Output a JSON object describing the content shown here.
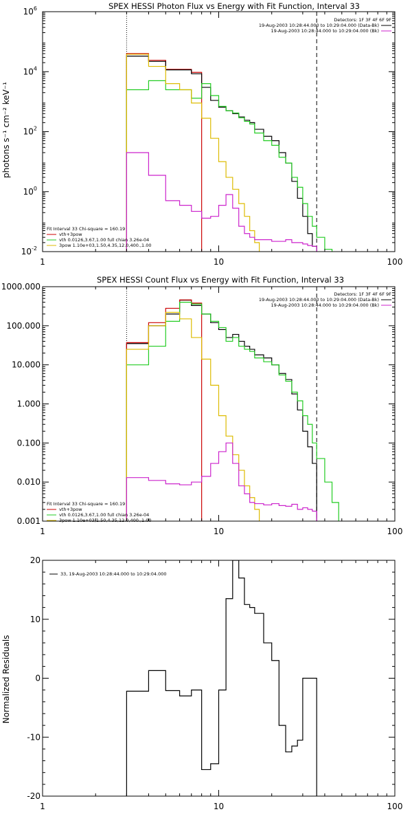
{
  "colors": {
    "total": "#000000",
    "red": "#cc0000",
    "green": "#22cc22",
    "yellow": "#ddbb00",
    "magenta": "#cc22cc",
    "blue": "#2222ee"
  },
  "chart_data": [
    {
      "type": "line",
      "title": "SPEX HESSI Photon Flux vs Energy with Fit Function, Interval 33",
      "ylabel": "photons s⁻¹ cm⁻² keV⁻¹",
      "xscale": "log",
      "yscale": "log",
      "xlim": [
        1,
        100
      ],
      "ylim": [
        0.01,
        1000000
      ],
      "xticks": [
        {
          "v": 1,
          "label": "1"
        },
        {
          "v": 10,
          "label": "10"
        },
        {
          "v": 100,
          "label": "100"
        }
      ],
      "yticks": [
        {
          "v": 0.01,
          "base": "10",
          "exp": "-2"
        },
        {
          "v": 1,
          "base": "10",
          "exp": "0"
        },
        {
          "v": 100,
          "base": "10",
          "exp": "2"
        },
        {
          "v": 10000,
          "base": "10",
          "exp": "4"
        },
        {
          "v": 1000000,
          "base": "10",
          "exp": "6"
        }
      ],
      "legend_top": [
        {
          "text": "Detectors: 1F 3F 4F 6F 9F",
          "color": ""
        },
        {
          "text": "19-Aug-2003 10:28:44.000 to 10:29:04.000 (Data-Bk)",
          "color": "#000000"
        },
        {
          "text": "19-Aug-2003 10:28:44.000 to 10:29:04.000 (Bk)",
          "color": "#cc22cc"
        }
      ],
      "legend_bottom": [
        {
          "text": "Fit Interval 33   Chi-square = 160.19",
          "color": ""
        },
        {
          "text": "vth+3pow",
          "color": "#cc0000"
        },
        {
          "text": "vth 0.0126,3.67,1.00  full chian 3.26e-04",
          "color": "#22cc22"
        },
        {
          "text": "3pow 1.10e+03,1.50,4.35,12.0,400.,1.00",
          "color": "#ddbb00"
        }
      ],
      "vlines": [
        {
          "x": 3.0,
          "style": "dotted"
        },
        {
          "x": 36.0,
          "style": "dashed"
        }
      ],
      "series": [
        {
          "color": "#cc0000",
          "edges": [
            3.0,
            4.0,
            5.0,
            6.0,
            7.0,
            8.0
          ],
          "values": [
            40000,
            24000,
            12000,
            12000,
            9500
          ]
        },
        {
          "color": "#000000",
          "edges": [
            3.0,
            4.0,
            5.0,
            6.0,
            7.0,
            8.0,
            9.0,
            10.0,
            11.0,
            12.0,
            13.0,
            14.0,
            15.0,
            16.0,
            18.0,
            20.0,
            22.0,
            24.0,
            26.0,
            28.0,
            30.0,
            32.0,
            34.0,
            36.0
          ],
          "values": [
            33000,
            22000,
            11500,
            11500,
            8500,
            3000,
            1100,
            650,
            500,
            400,
            310,
            240,
            200,
            120,
            70,
            50,
            20,
            9,
            2.2,
            0.6,
            0.15,
            0.04,
            0.015
          ]
        },
        {
          "color": "#22cc22",
          "edges": [
            3.0,
            4.0,
            5.0,
            6.0,
            7.0,
            8.0,
            9.0,
            10.0,
            11.0,
            12.0,
            13.0,
            14.0,
            15.0,
            16.0,
            18.0,
            20.0,
            22.0,
            24.0,
            26.0,
            28.0,
            30.0,
            32.0,
            34.0,
            36.0,
            40.0,
            44.0
          ],
          "values": [
            2500,
            5000,
            2500,
            2500,
            1300,
            4000,
            1600,
            700,
            500,
            420,
            290,
            220,
            180,
            90,
            50,
            35,
            14,
            9,
            3,
            1.4,
            0.4,
            0.15,
            0.07,
            0.03,
            0.012
          ]
        },
        {
          "color": "#ddbb00",
          "edges": [
            3.0,
            4.0,
            5.0,
            6.0,
            7.0,
            8.0,
            9.0,
            10.0,
            11.0,
            12.0,
            13.0,
            14.0,
            15.0,
            16.0,
            17.0
          ],
          "values": [
            38000,
            15000,
            4000,
            2500,
            900,
            280,
            60,
            10,
            3,
            1.2,
            0.4,
            0.15,
            0.05,
            0.02
          ]
        },
        {
          "color": "#cc22cc",
          "edges": [
            3.0,
            4.0,
            5.0,
            6.0,
            7.0,
            8.0,
            9.0,
            10.0,
            11.0,
            12.0,
            13.0,
            14.0,
            15.0,
            16.0,
            18.0,
            20.0,
            22.0,
            24.0,
            26.0,
            28.0,
            30.0,
            32.0,
            34.0,
            36.0
          ],
          "values": [
            20,
            3.5,
            0.5,
            0.35,
            0.22,
            0.13,
            0.15,
            0.35,
            0.8,
            0.28,
            0.07,
            0.04,
            0.03,
            0.025,
            0.025,
            0.022,
            0.022,
            0.025,
            0.02,
            0.02,
            0.018,
            0.016,
            0.015
          ]
        }
      ]
    },
    {
      "type": "line",
      "title": "SPEX HESSI Count Flux vs Energy with Fit Function, Interval 33",
      "ylabel": "",
      "xscale": "log",
      "yscale": "log",
      "xlim": [
        1,
        100
      ],
      "ylim": [
        0.001,
        1000
      ],
      "xticks": [
        {
          "v": 1,
          "label": "1"
        },
        {
          "v": 10,
          "label": "10"
        },
        {
          "v": 100,
          "label": "100"
        }
      ],
      "yticks": [
        {
          "v": 0.001,
          "label": "0.001"
        },
        {
          "v": 0.01,
          "label": "0.010"
        },
        {
          "v": 0.1,
          "label": "0.100"
        },
        {
          "v": 1,
          "label": "1.000"
        },
        {
          "v": 10,
          "label": "10.000"
        },
        {
          "v": 100,
          "label": "100.000"
        },
        {
          "v": 1000,
          "label": "1000.000"
        }
      ],
      "legend_top": [
        {
          "text": "Detectors: 1F 3F 4F 6F 9F",
          "color": ""
        },
        {
          "text": "19-Aug-2003 10:28:44.000 to 10:29:04.000 (Data-Bk)",
          "color": "#000000"
        },
        {
          "text": "19-Aug-2003 10:28:44.000 to 10:29:04.000 (Bk)",
          "color": "#cc22cc"
        }
      ],
      "legend_bottom": [
        {
          "text": "Fit Interval 33   Chi-square = 160.19",
          "color": ""
        },
        {
          "text": "vth+3pow",
          "color": "#cc0000"
        },
        {
          "text": "vth 0.0126,3.67,1.00  full chian 3.26e-04",
          "color": "#22cc22"
        },
        {
          "text": "3pow 1.10e+03,1.50,4.35,12.0,400.,1.00",
          "color": "#ddbb00"
        }
      ],
      "vlines": [
        {
          "x": 3.0,
          "style": "dotted"
        },
        {
          "x": 36.0,
          "style": "dashed"
        }
      ],
      "series": [
        {
          "color": "#000000",
          "edges": [
            3.0,
            4.0,
            5.0,
            6.0,
            7.0,
            8.0,
            9.0,
            10.0,
            11.0,
            12.0,
            13.0,
            14.0,
            15.0,
            16.0,
            18.0,
            20.0,
            22.0,
            24.0,
            26.0,
            28.0,
            30.0,
            32.0,
            34.0,
            36.0
          ],
          "values": [
            35,
            100,
            200,
            450,
            330,
            200,
            120,
            80,
            50,
            60,
            40,
            30,
            25,
            18,
            15,
            10,
            6,
            4.2,
            1.8,
            0.7,
            0.2,
            0.08,
            0.03
          ]
        },
        {
          "color": "#cc0000",
          "edges": [
            3.0,
            4.0,
            5.0,
            6.0,
            7.0,
            8.0
          ],
          "values": [
            37,
            120,
            280,
            460,
            380
          ]
        },
        {
          "color": "#22cc22",
          "edges": [
            3.0,
            4.0,
            5.0,
            6.0,
            7.0,
            8.0,
            9.0,
            10.0,
            11.0,
            12.0,
            13.0,
            14.0,
            15.0,
            16.0,
            18.0,
            20.0,
            22.0,
            24.0,
            26.0,
            28.0,
            30.0,
            32.0,
            34.0,
            36.0,
            40.0,
            44.0,
            48.0
          ],
          "values": [
            10,
            30,
            130,
            400,
            360,
            200,
            130,
            90,
            40,
            50,
            30,
            25,
            22,
            15,
            12,
            10,
            5.5,
            3.8,
            2,
            1.2,
            0.5,
            0.3,
            0.1,
            0.04,
            0.01,
            0.003
          ]
        },
        {
          "color": "#ddbb00",
          "edges": [
            3.0,
            4.0,
            5.0,
            6.0,
            7.0,
            8.0,
            9.0,
            10.0,
            11.0,
            12.0,
            13.0,
            14.0,
            15.0,
            16.0,
            17.0
          ],
          "values": [
            25,
            100,
            220,
            150,
            50,
            14,
            3,
            0.5,
            0.15,
            0.05,
            0.02,
            0.008,
            0.004,
            0.002
          ]
        },
        {
          "color": "#cc22cc",
          "edges": [
            3.0,
            4.0,
            5.0,
            6.0,
            7.0,
            8.0,
            9.0,
            10.0,
            11.0,
            12.0,
            13.0,
            14.0,
            15.0,
            16.0,
            18.0,
            20.0,
            22.0,
            24.0,
            26.0,
            28.0,
            30.0,
            32.0,
            34.0,
            36.0
          ],
          "values": [
            0.013,
            0.011,
            0.009,
            0.0085,
            0.01,
            0.014,
            0.03,
            0.06,
            0.1,
            0.03,
            0.008,
            0.005,
            0.003,
            0.0028,
            0.0026,
            0.0028,
            0.0025,
            0.0024,
            0.0027,
            0.002,
            0.0022,
            0.002,
            0.0018
          ]
        }
      ]
    },
    {
      "type": "line",
      "title": "",
      "ylabel": "Normalized Residuals",
      "xscale": "log",
      "yscale": "linear",
      "xlim": [
        1,
        100
      ],
      "ylim": [
        -20,
        20
      ],
      "xticks": [
        {
          "v": 1,
          "label": "1"
        },
        {
          "v": 10,
          "label": "10"
        },
        {
          "v": 100,
          "label": "100"
        }
      ],
      "yticks": [
        {
          "v": -20,
          "label": "-20"
        },
        {
          "v": -10,
          "label": "-10"
        },
        {
          "v": 0,
          "label": "0"
        },
        {
          "v": 10,
          "label": "10"
        },
        {
          "v": 20,
          "label": "20"
        }
      ],
      "legend_top": [
        {
          "text": "33, 19-Aug-2003 10:28:44.000 to 10:29:04.000",
          "color": "#000000"
        }
      ],
      "legend_bottom": [],
      "vlines": [],
      "series": [
        {
          "color": "#000000",
          "edges": [
            3.0,
            4.0,
            5.0,
            6.0,
            7.0,
            8.0,
            9.0,
            10.0,
            11.0,
            12.0,
            13.0,
            14.0,
            15.0,
            16.0,
            18.0,
            20.0,
            22.0,
            24.0,
            26.0,
            28.0,
            30.0,
            32.0,
            34.0,
            36.0
          ],
          "values": [
            -2.2,
            1.3,
            -2.1,
            -3,
            -2,
            -15.5,
            -14.5,
            -2,
            13.5,
            20,
            17,
            12.5,
            12,
            11,
            6,
            3,
            -8,
            -12.5,
            -11.5,
            -10.5,
            0,
            0,
            0
          ],
          "cut": 36.0
        }
      ]
    }
  ]
}
